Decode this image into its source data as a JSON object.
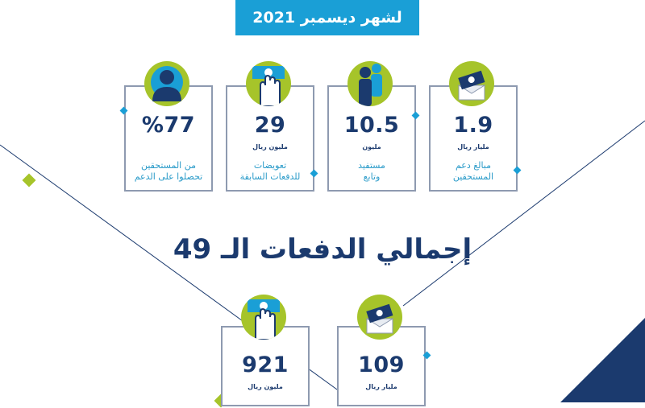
{
  "banner": {
    "text": "لشهر ديسمبر 2021"
  },
  "cards": [
    {
      "value": "1.9",
      "unit": "مليار ريال",
      "desc1": "مبالغ دعم",
      "desc2": "المستحقين",
      "icon": "money-envelope-icon"
    },
    {
      "value": "10.5",
      "unit": "مليون",
      "desc1": "مستفيد",
      "desc2": "وتابع",
      "icon": "people-icon"
    },
    {
      "value": "29",
      "unit": "مليون ريال",
      "desc1": "تعويضات",
      "desc2": "للدفعات السابقة",
      "icon": "hand-money-icon"
    },
    {
      "value": "%77",
      "unit": "",
      "desc1": "من المستحقين",
      "desc2": "تحصلوا على الدعم",
      "icon": "person-icon"
    }
  ],
  "section": {
    "title": "إجمالي الدفعات الـ 49"
  },
  "totals": [
    {
      "value": "109",
      "unit": "مليار ريال",
      "icon": "money-envelope-icon"
    },
    {
      "value": "921",
      "unit": "مليون ريال",
      "icon": "hand-money-icon"
    }
  ],
  "colors": {
    "navy": "#1b3a6e",
    "blue": "#1a9fd6",
    "green": "#a6c42a",
    "border": "#8e9ab0"
  }
}
